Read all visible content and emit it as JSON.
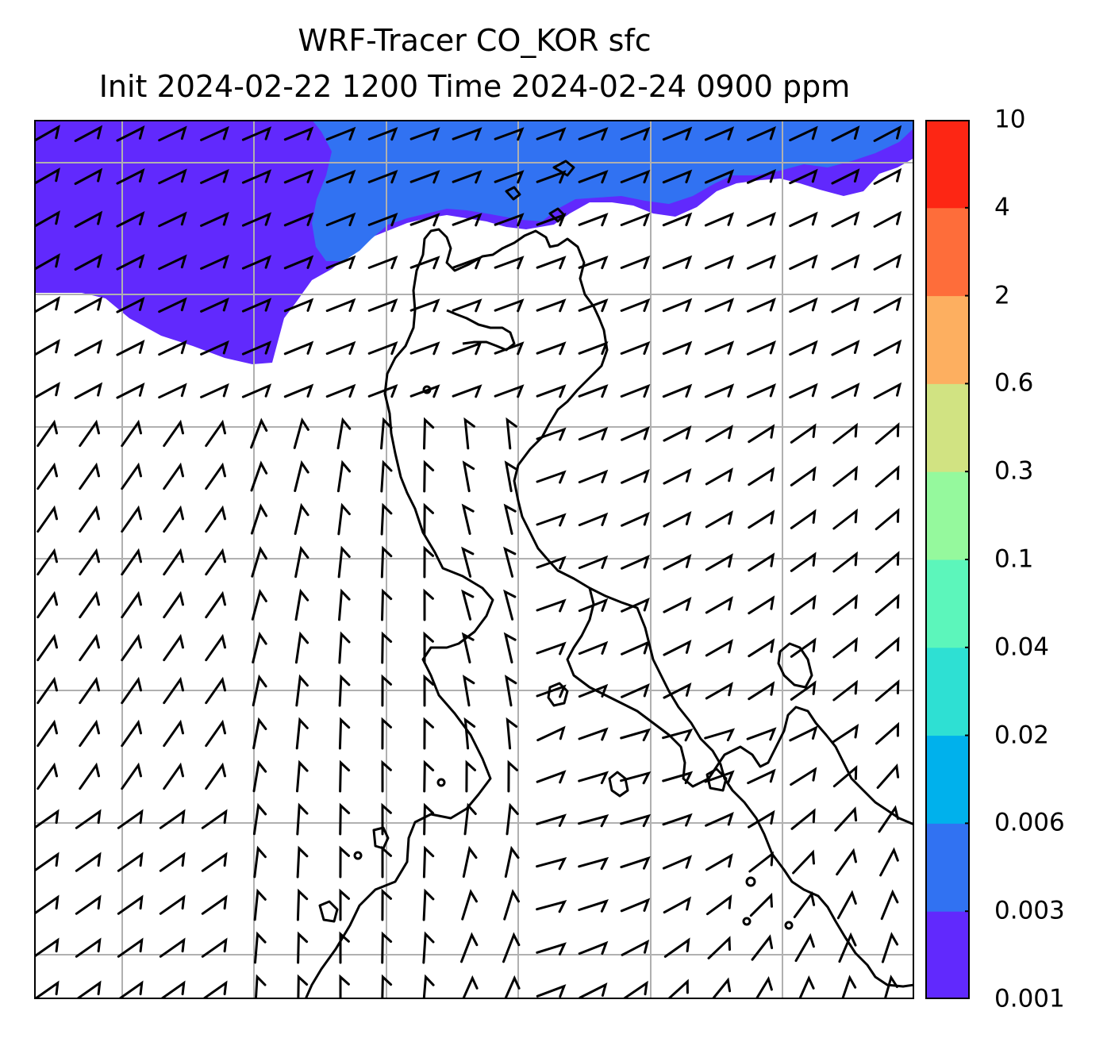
{
  "title": {
    "line1": "WRF-Tracer CO_KOR sfc",
    "line2": "Init 2024-02-22 1200 Time 2024-02-24 0900 ppm"
  },
  "colorbar": {
    "levels": [
      "0.001",
      "0.003",
      "0.006",
      "0.02",
      "0.04",
      "0.1",
      "0.3",
      "0.6",
      "2",
      "4",
      "10"
    ],
    "colors": [
      "#6129fd",
      "#3172f2",
      "#00b1ec",
      "#2ee0d3",
      "#5cf6bb",
      "#95f99d",
      "#d1e382",
      "#fdaf60",
      "#fe6d3a",
      "#fd2614"
    ]
  },
  "map": {
    "grid": true,
    "gridline_color": "#b0b0b0",
    "coastline_color": "#000000",
    "barb_color": "#000000",
    "background_color": "#ffffff"
  }
}
